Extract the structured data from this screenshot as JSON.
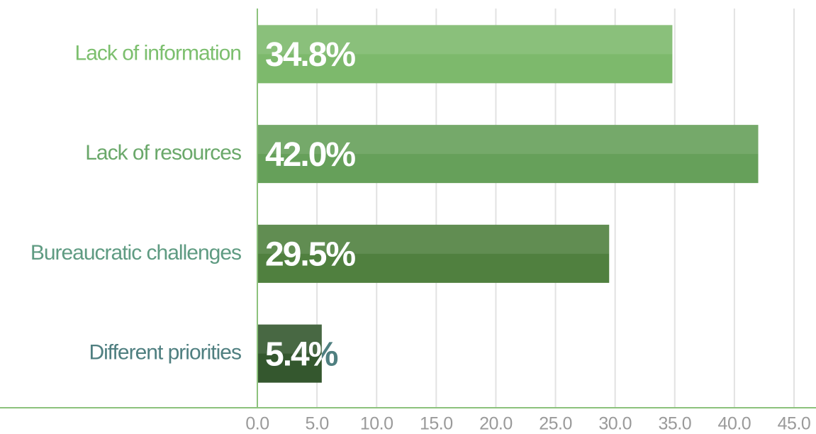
{
  "chart_data": {
    "type": "barh",
    "categories": [
      "Lack of information",
      "Lack of resources",
      "Bureaucratic challenges",
      "Different priorities"
    ],
    "values": [
      34.8,
      42.0,
      29.5,
      5.4
    ],
    "value_labels": [
      "34.8%",
      "42.0%",
      "29.5%",
      "5.4%"
    ],
    "colors": [
      "#7db96c",
      "#66a05a",
      "#50803f",
      "#34572e"
    ],
    "label_colors": [
      "#7cbf6e",
      "#6aa86a",
      "#5f9b82",
      "#4f7f80"
    ],
    "xlim": [
      0,
      45
    ],
    "xticks": [
      {
        "value": 0,
        "label": "0.0"
      },
      {
        "value": 5,
        "label": "5.0"
      },
      {
        "value": 10,
        "label": "10.0"
      },
      {
        "value": 15,
        "label": "15.0"
      },
      {
        "value": 20,
        "label": "20.0"
      },
      {
        "value": 25,
        "label": "25.0"
      },
      {
        "value": 30,
        "label": "30.0"
      },
      {
        "value": 35,
        "label": "35.0"
      },
      {
        "value": 40,
        "label": "40.0"
      },
      {
        "value": 45,
        "label": "45.0"
      }
    ],
    "grid": true
  }
}
